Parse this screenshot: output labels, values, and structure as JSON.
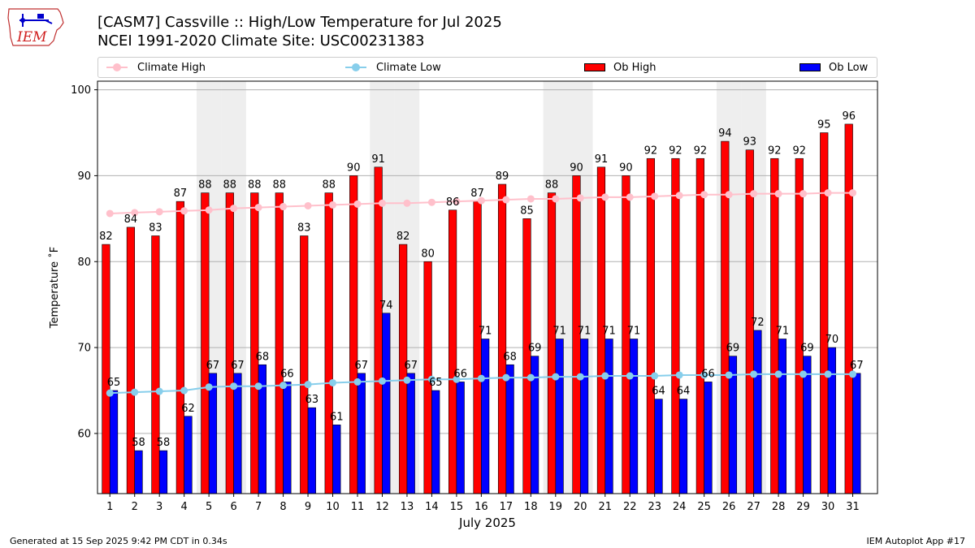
{
  "header": {
    "title_line1": "[CASM7] Cassville :: High/Low Temperature for Jul 2025",
    "title_line2": "NCEI 1991-2020 Climate Site: USC00231383"
  },
  "logo": {
    "text": "IEM",
    "icon": "iem-iowa-logo"
  },
  "legend": {
    "climate_high": "Climate High",
    "climate_low": "Climate Low",
    "ob_high": "Ob High",
    "ob_low": "Ob Low"
  },
  "footer": {
    "left": "Generated at 15 Sep 2025 9:42 PM CDT in 0.34s",
    "right": "IEM Autoplot App #17"
  },
  "colors": {
    "ob_high": "#ff0000",
    "ob_low": "#0000ff",
    "climate_high": "#ffc0cb",
    "climate_low": "#87ceeb",
    "weekend_shade": "#eeeeee",
    "grid": "#b0b0b0"
  },
  "chart_data": {
    "type": "bar",
    "xlabel": "July 2025",
    "ylabel": "Temperature $^\\circ$F",
    "ylabel_display": "Temperature ˚F",
    "ylim": [
      53,
      101
    ],
    "yticks": [
      60,
      70,
      80,
      90,
      100
    ],
    "grid": "horizontal",
    "legend_placement": "top",
    "categories": [
      "1",
      "2",
      "3",
      "4",
      "5",
      "6",
      "7",
      "8",
      "9",
      "10",
      "11",
      "12",
      "13",
      "14",
      "15",
      "16",
      "17",
      "18",
      "19",
      "20",
      "21",
      "22",
      "23",
      "24",
      "25",
      "26",
      "27",
      "28",
      "29",
      "30",
      "31"
    ],
    "shaded_days": [
      5,
      6,
      12,
      13,
      19,
      20,
      26,
      27
    ],
    "series": [
      {
        "name": "Ob High",
        "type": "bar",
        "values": [
          82,
          84,
          83,
          87,
          88,
          88,
          88,
          88,
          83,
          88,
          90,
          91,
          82,
          80,
          86,
          87,
          89,
          85,
          88,
          90,
          91,
          90,
          92,
          92,
          92,
          94,
          93,
          92,
          92,
          95,
          96
        ]
      },
      {
        "name": "Ob Low",
        "type": "bar",
        "values": [
          65,
          58,
          58,
          62,
          67,
          67,
          68,
          66,
          63,
          61,
          67,
          74,
          67,
          65,
          66,
          71,
          68,
          69,
          71,
          71,
          71,
          71,
          64,
          64,
          66,
          69,
          72,
          71,
          69,
          70,
          67
        ]
      },
      {
        "name": "Climate High",
        "type": "line",
        "values": [
          85.6,
          85.7,
          85.8,
          85.9,
          86.0,
          86.2,
          86.3,
          86.4,
          86.5,
          86.6,
          86.7,
          86.8,
          86.8,
          86.9,
          87.0,
          87.1,
          87.2,
          87.3,
          87.3,
          87.4,
          87.5,
          87.5,
          87.6,
          87.7,
          87.8,
          87.8,
          87.9,
          87.9,
          87.9,
          88.0,
          88.0
        ]
      },
      {
        "name": "Climate Low",
        "type": "line",
        "values": [
          64.7,
          64.8,
          64.9,
          65.0,
          65.4,
          65.5,
          65.5,
          65.6,
          65.7,
          65.9,
          66.0,
          66.1,
          66.2,
          66.3,
          66.3,
          66.4,
          66.5,
          66.5,
          66.6,
          66.6,
          66.7,
          66.7,
          66.7,
          66.8,
          66.8,
          66.8,
          66.9,
          66.9,
          66.9,
          66.9,
          66.9
        ]
      }
    ]
  }
}
